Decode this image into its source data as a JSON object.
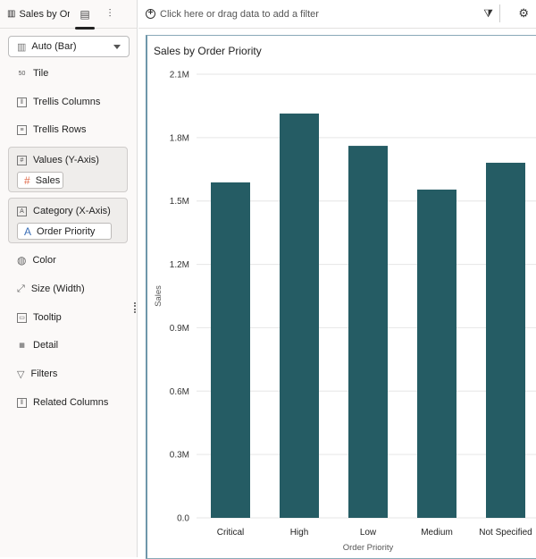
{
  "sidebar": {
    "title": "Sales by Or...",
    "chart_type": "Auto (Bar)",
    "items": [
      {
        "label": "Tile",
        "icon": "tile-icon"
      },
      {
        "label": "Trellis Columns",
        "icon": "trellis-columns-icon"
      },
      {
        "label": "Trellis Rows",
        "icon": "trellis-rows-icon"
      },
      {
        "label": "Color",
        "icon": "color-icon"
      },
      {
        "label": "Size (Width)",
        "icon": "size-icon"
      },
      {
        "label": "Tooltip",
        "icon": "tooltip-icon"
      },
      {
        "label": "Detail",
        "icon": "detail-icon"
      },
      {
        "label": "Filters",
        "icon": "filter-icon"
      },
      {
        "label": "Related Columns",
        "icon": "related-columns-icon"
      }
    ],
    "values_well": {
      "label": "Values (Y-Axis)",
      "pill": "Sales"
    },
    "category_well": {
      "label": "Category (X-Axis)",
      "pill": "Order Priority"
    }
  },
  "topbar": {
    "filter_placeholder": "Click here or drag data to add a filter"
  },
  "colors": {
    "bar": "#255c64",
    "measure": "#e06a4a",
    "attribute": "#3b6fb6"
  },
  "chart_data": {
    "type": "bar",
    "title": "Sales by Order Priority",
    "xlabel": "Order Priority",
    "ylabel": "Sales",
    "categories": [
      "Critical",
      "High",
      "Low",
      "Medium",
      "Not Specified"
    ],
    "values": [
      1588000,
      1914000,
      1761000,
      1554000,
      1681000
    ],
    "ylim": [
      0,
      2100000
    ],
    "yticks": [
      "0.0",
      "0.3M",
      "0.6M",
      "0.9M",
      "1.2M",
      "1.5M",
      "1.8M",
      "2.1M"
    ],
    "ytick_values": [
      0,
      300000,
      600000,
      900000,
      1200000,
      1500000,
      1800000,
      2100000
    ],
    "grid": true
  }
}
